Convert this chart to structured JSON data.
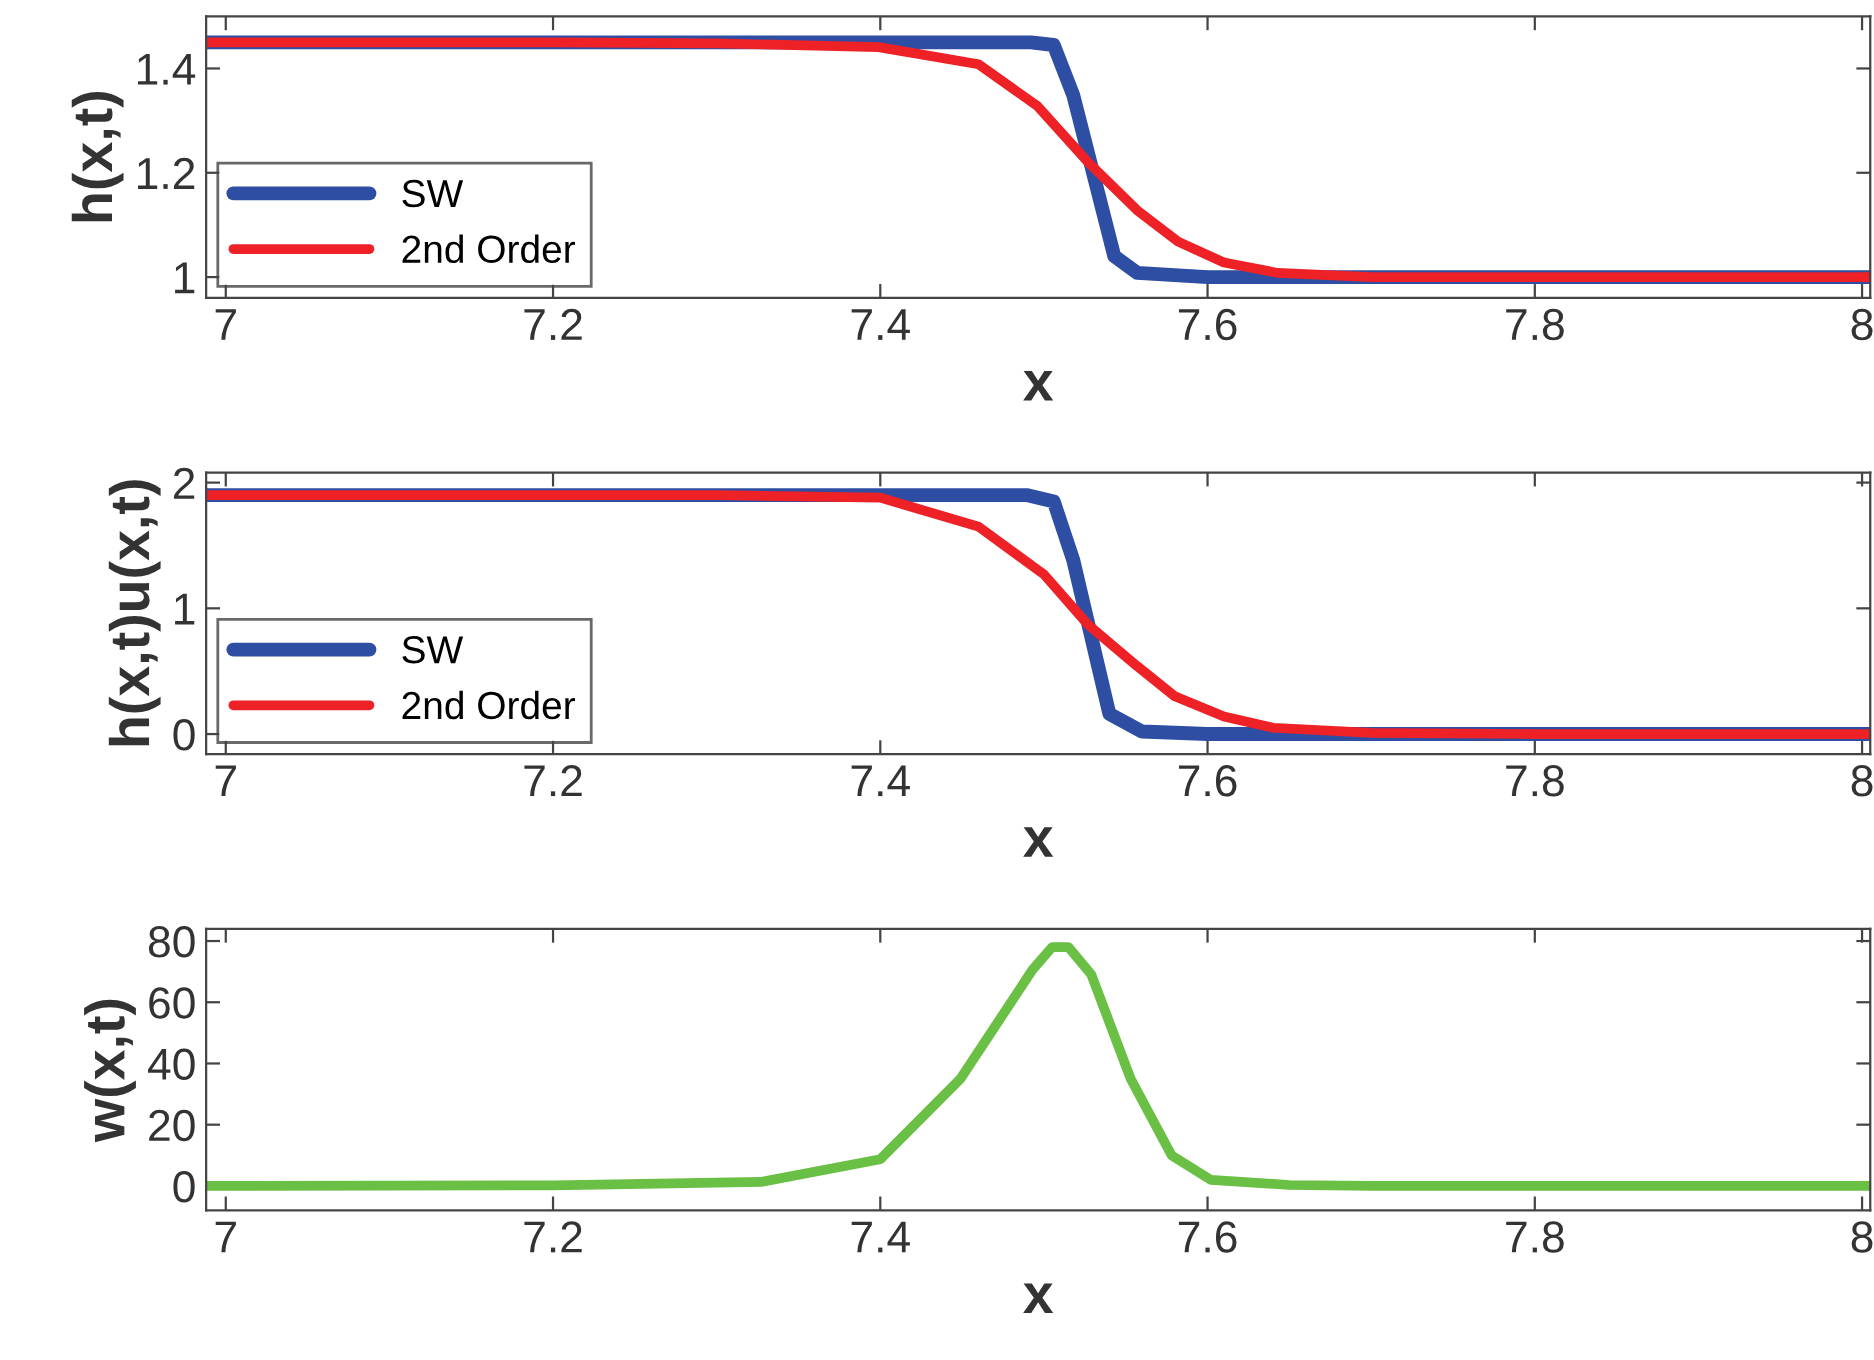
{
  "chart_data": [
    {
      "type": "line",
      "xlabel": "x",
      "ylabel": "h(x,t)",
      "xlim": [
        6.988,
        8.005
      ],
      "ylim": [
        0.96,
        1.5
      ],
      "xticks": [
        7,
        7.2,
        7.4,
        7.6,
        7.8,
        8
      ],
      "yticks": [
        1,
        1.2,
        1.4
      ],
      "legend": "bottom left",
      "grid": false,
      "series": [
        {
          "name": "SW",
          "color": "#2e4ea3",
          "x": [
            6.988,
            7.2,
            7.4,
            7.492,
            7.506,
            7.518,
            7.543,
            7.557,
            7.6,
            7.8,
            8.005
          ],
          "values": [
            1.45,
            1.45,
            1.45,
            1.45,
            1.445,
            1.348,
            1.04,
            1.008,
            1.0,
            1.0,
            1.0
          ]
        },
        {
          "name": "2nd Order",
          "color": "#ee2127",
          "x": [
            6.988,
            7.2,
            7.3,
            7.399,
            7.46,
            7.496,
            7.527,
            7.557,
            7.582,
            7.61,
            7.643,
            7.7,
            7.8,
            8.005
          ],
          "values": [
            1.45,
            1.45,
            1.448,
            1.441,
            1.408,
            1.328,
            1.22,
            1.128,
            1.068,
            1.028,
            1.008,
            1.0,
            1.0,
            1.0
          ]
        }
      ]
    },
    {
      "type": "line",
      "xlabel": "x",
      "ylabel": "h(x,t)u(x,t)",
      "xlim": [
        6.988,
        8.005
      ],
      "ylim": [
        -0.16,
        2.08
      ],
      "xticks": [
        7,
        7.2,
        7.4,
        7.6,
        7.8,
        8
      ],
      "yticks": [
        0,
        1,
        2
      ],
      "legend": "bottom left",
      "grid": false,
      "series": [
        {
          "name": "SW",
          "color": "#2e4ea3",
          "x": [
            6.988,
            7.2,
            7.4,
            7.49,
            7.506,
            7.518,
            7.54,
            7.56,
            7.6,
            7.8,
            8.005
          ],
          "values": [
            1.9,
            1.9,
            1.9,
            1.9,
            1.85,
            1.38,
            0.16,
            0.02,
            0,
            0,
            0
          ]
        },
        {
          "name": "2nd Order",
          "color": "#ee2127",
          "x": [
            6.988,
            7.2,
            7.3,
            7.4,
            7.46,
            7.5,
            7.527,
            7.557,
            7.58,
            7.61,
            7.64,
            7.7,
            7.8,
            8.005
          ],
          "values": [
            1.9,
            1.9,
            1.9,
            1.88,
            1.65,
            1.27,
            0.87,
            0.54,
            0.3,
            0.14,
            0.05,
            0.01,
            0,
            0
          ]
        }
      ]
    },
    {
      "type": "line",
      "xlabel": "x",
      "ylabel": "w(x,t)",
      "xlim": [
        6.988,
        8.005
      ],
      "ylim": [
        -8,
        84
      ],
      "xticks": [
        7,
        7.2,
        7.4,
        7.6,
        7.8,
        8
      ],
      "yticks": [
        0,
        20,
        40,
        60,
        80
      ],
      "grid": false,
      "series": [
        {
          "color": "#6abf45",
          "x": [
            6.988,
            7.2,
            7.327,
            7.4,
            7.449,
            7.493,
            7.505,
            7.515,
            7.529,
            7.553,
            7.578,
            7.602,
            7.65,
            7.7,
            8.005
          ],
          "values": [
            0,
            0.2,
            1.3,
            8.7,
            35,
            70.6,
            78,
            78,
            69,
            35,
            10,
            2,
            0.3,
            0,
            0
          ]
        }
      ]
    }
  ]
}
